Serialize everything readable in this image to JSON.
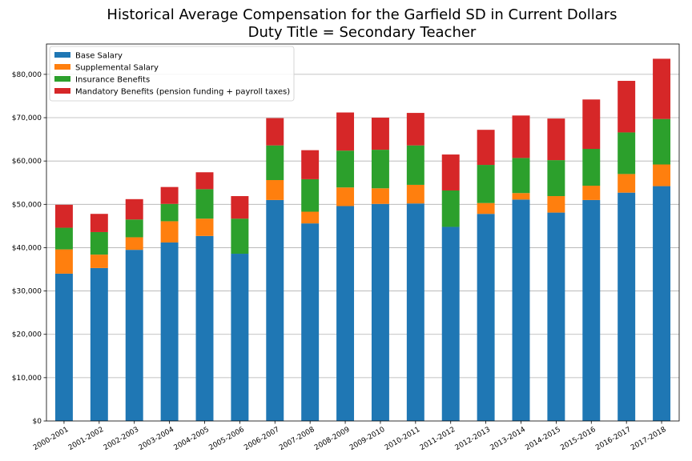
{
  "chart_data": {
    "type": "bar",
    "stacked": true,
    "title": "Historical Average Compensation for the Garfield SD in Current Dollars",
    "subtitle": "Duty Title = Secondary Teacher",
    "xlabel": "",
    "ylabel": "",
    "ylim": [
      0,
      87000
    ],
    "yticks": [
      0,
      10000,
      20000,
      30000,
      40000,
      50000,
      60000,
      70000,
      80000
    ],
    "ytick_labels": [
      "$0",
      "$10,000",
      "$20,000",
      "$30,000",
      "$40,000",
      "$50,000",
      "$60,000",
      "$70,000",
      "$80,000"
    ],
    "grid": "y",
    "legend_position": "top-left",
    "categories": [
      "2000-2001",
      "2001-2002",
      "2002-2003",
      "2003-2004",
      "2004-2005",
      "2005-2006",
      "2006-2007",
      "2007-2008",
      "2008-2009",
      "2009-2010",
      "2010-2011",
      "2011-2012",
      "2012-2013",
      "2013-2014",
      "2014-2015",
      "2015-2016",
      "2016-2017",
      "2017-2018"
    ],
    "series": [
      {
        "name": "Base Salary",
        "color": "#1f77b4",
        "values": [
          34000,
          35300,
          39500,
          41200,
          42700,
          38600,
          51000,
          45600,
          49600,
          50100,
          50200,
          44800,
          47800,
          51100,
          48100,
          51000,
          52700,
          54200
        ]
      },
      {
        "name": "Supplemental Salary",
        "color": "#ff7f0e",
        "values": [
          5600,
          3100,
          2900,
          4900,
          4000,
          0,
          4600,
          2700,
          4300,
          3600,
          4300,
          0,
          2500,
          1500,
          3800,
          3300,
          4300,
          5000
        ]
      },
      {
        "name": "Insurance Benefits",
        "color": "#2ca02c",
        "values": [
          5000,
          5200,
          4100,
          4000,
          6800,
          8100,
          8000,
          7500,
          8500,
          8900,
          9100,
          8400,
          8800,
          8100,
          8300,
          8500,
          9600,
          10500
        ]
      },
      {
        "name": "Mandatory Benefits (pension funding + payroll taxes)",
        "color": "#d62728",
        "values": [
          5300,
          4200,
          4700,
          3900,
          3900,
          5200,
          6300,
          6700,
          8800,
          7400,
          7500,
          8300,
          8100,
          9800,
          9600,
          11400,
          11900,
          13900
        ]
      }
    ]
  }
}
